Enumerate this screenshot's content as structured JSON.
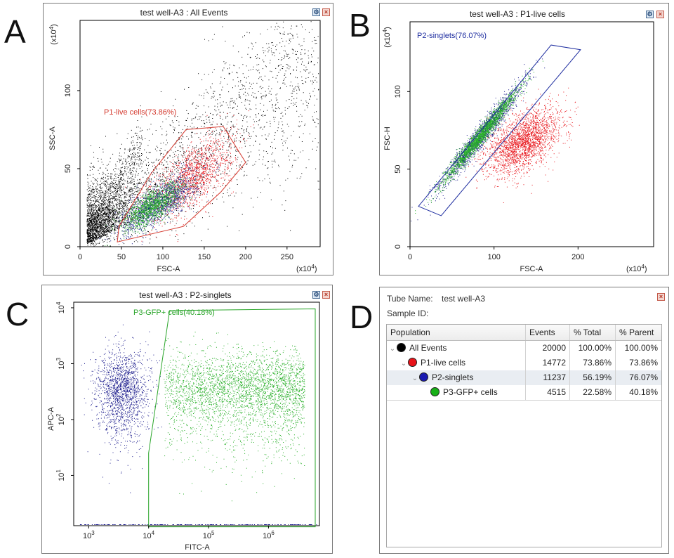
{
  "panel_labels": [
    "A",
    "B",
    "C",
    "D"
  ],
  "icons": {
    "window_option": "options-icon",
    "window_close": "close-icon"
  },
  "panels": {
    "A": {
      "title": "test well-A3 : All Events",
      "gate_label": "P1-live cells(73.86%)"
    },
    "B": {
      "title": "test well-A3 : P1-live cells",
      "gate_label": "P2-singlets(76.07%)"
    },
    "C": {
      "title": "test well-A3 : P2-singlets",
      "gate_label": "P3-GFP+ cells(40.18%)"
    }
  },
  "colors": {
    "all_events": "#000000",
    "p1_gate": "#d43a2f",
    "p1_dots": "#e8141a",
    "p2_gate": "#1f2ea0",
    "p2_dots": "#1a1a8c",
    "p3_gate": "#2aa52a",
    "p3_dots": "#29b029"
  },
  "chart_data": [
    {
      "type": "scatter",
      "title": "test well-A3 : All Events",
      "xlabel": "FSC-A",
      "ylabel": "SSC-A",
      "x_multiplier": "(x10^4)",
      "y_multiplier": "(x10^4)",
      "x_ticks": [
        0,
        50,
        100,
        150,
        200,
        250
      ],
      "y_ticks": [
        0,
        50,
        100
      ],
      "xlim": [
        0,
        290
      ],
      "ylim": [
        0,
        145
      ],
      "gates": [
        {
          "name": "P1-live cells",
          "percent": 73.86,
          "polygon": [
            [
              45,
              3
            ],
            [
              125,
              13
            ],
            [
              170,
              35
            ],
            [
              200,
              54
            ],
            [
              173,
              77
            ],
            [
              128,
              75
            ],
            [
              86,
              47
            ],
            [
              47,
              13
            ]
          ]
        }
      ],
      "populations": [
        {
          "name": "All Events (outside P1)",
          "color": "#000000",
          "approx_center": [
            80,
            40
          ]
        },
        {
          "name": "P1-live cells",
          "color": "#e8141a",
          "approx_center": [
            140,
            45
          ]
        },
        {
          "name": "P2-singlets",
          "color": "#1a1a8c",
          "approx_center": [
            95,
            28
          ]
        },
        {
          "name": "P3-GFP+ cells",
          "color": "#29b029",
          "approx_center": [
            90,
            27
          ]
        }
      ]
    },
    {
      "type": "scatter",
      "title": "test well-A3 : P1-live cells",
      "xlabel": "FSC-A",
      "ylabel": "FSC-H",
      "x_multiplier": "(x10^4)",
      "y_multiplier": "(x10^4)",
      "x_ticks": [
        0,
        100,
        200
      ],
      "y_ticks": [
        0,
        50,
        100
      ],
      "xlim": [
        0,
        290
      ],
      "ylim": [
        0,
        145
      ],
      "gates": [
        {
          "name": "P2-singlets",
          "percent": 76.07,
          "polygon": [
            [
              10,
              26
            ],
            [
              168,
              130
            ],
            [
              203,
              127
            ],
            [
              37,
              20
            ]
          ]
        }
      ],
      "populations": [
        {
          "name": "P1-live cells (non-singlets)",
          "color": "#e8141a",
          "approx_center": [
            135,
            70
          ]
        },
        {
          "name": "P2-singlets",
          "color": "#1a1a8c",
          "approx_center": [
            85,
            72
          ]
        },
        {
          "name": "P3-GFP+ cells",
          "color": "#29b029",
          "approx_center": [
            85,
            72
          ]
        }
      ]
    },
    {
      "type": "scatter",
      "title": "test well-A3 : P2-singlets",
      "xlabel": "FITC-A",
      "ylabel": "APC-A",
      "x_scale": "log",
      "y_scale": "log",
      "x_ticks": [
        "10^3",
        "10^4",
        "10^5",
        "10^6"
      ],
      "y_ticks": [
        "10^1",
        "10^2",
        "10^3",
        "10^4"
      ],
      "gates": [
        {
          "name": "P3-GFP+ cells",
          "percent": 40.18
        }
      ],
      "populations": [
        {
          "name": "P2-singlets (GFP-)",
          "color": "#1a1a8c",
          "approx_center": [
            3500,
            400
          ]
        },
        {
          "name": "P3-GFP+ cells",
          "color": "#29b029",
          "approx_center": [
            150000,
            450
          ]
        }
      ]
    },
    {
      "type": "table",
      "tube_name_label": "Tube Name:",
      "tube_name_value": "test well-A3",
      "sample_id_label": "Sample ID:",
      "columns": [
        "Population",
        "Events",
        "% Total",
        "% Parent"
      ],
      "rows": [
        {
          "population": "All Events",
          "color": "#000000",
          "events": "20000",
          "pct_total": "100.00%",
          "pct_parent": "100.00%"
        },
        {
          "population": "P1-live cells",
          "color": "#e8141a",
          "events": "14772",
          "pct_total": "73.86%",
          "pct_parent": "73.86%"
        },
        {
          "population": "P2-singlets",
          "color": "#1a1ab0",
          "events": "11237",
          "pct_total": "56.19%",
          "pct_parent": "76.07%"
        },
        {
          "population": "P3-GFP+ cells",
          "color": "#18b018",
          "events": "4515",
          "pct_total": "22.58%",
          "pct_parent": "40.18%"
        }
      ]
    }
  ]
}
